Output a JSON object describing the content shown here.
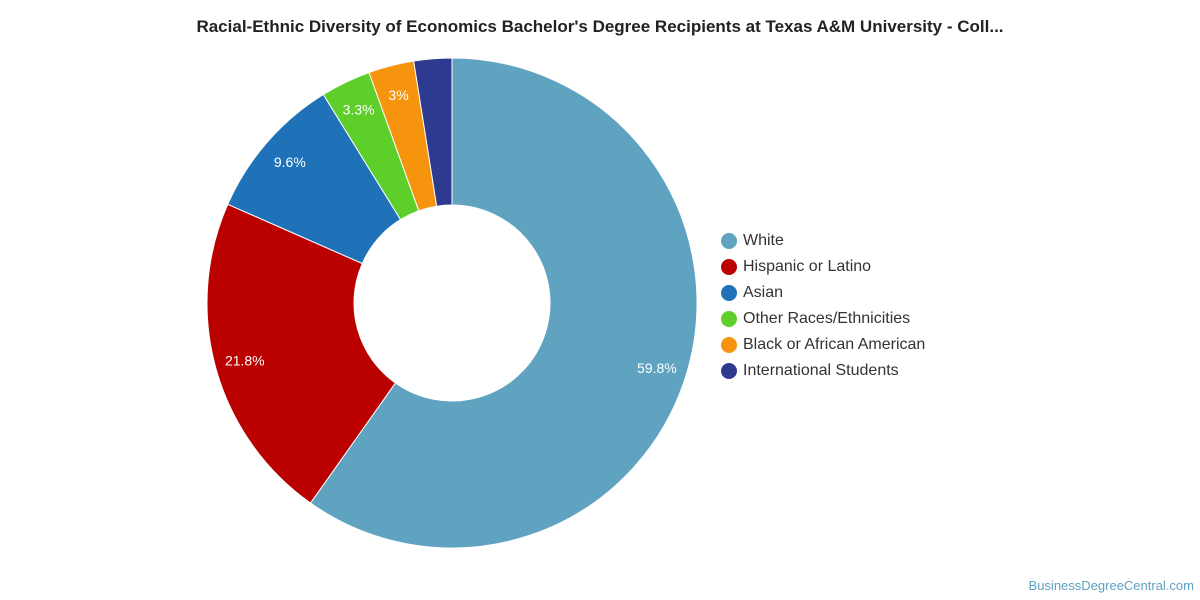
{
  "chart_data": {
    "type": "pie",
    "title": "Racial-Ethnic Diversity of Economics Bachelor's Degree Recipients at Texas A&M University - Coll...",
    "categories": [
      "White",
      "Hispanic or Latino",
      "Asian",
      "Other Races/Ethnicities",
      "Black or African American",
      "International Students"
    ],
    "values": [
      59.8,
      21.8,
      9.6,
      3.3,
      3.0,
      2.5
    ],
    "data_labels": [
      "59.8%",
      "21.8%",
      "9.6%",
      "3.3%",
      "3%",
      ""
    ],
    "colors": [
      "#5fa3c0",
      "#bb0000",
      "#1f72b8",
      "#5ece2a",
      "#f7940e",
      "#2d3a8f"
    ],
    "donut": true,
    "legend_position": "right"
  },
  "watermark": "BusinessDegreeCentral.com"
}
